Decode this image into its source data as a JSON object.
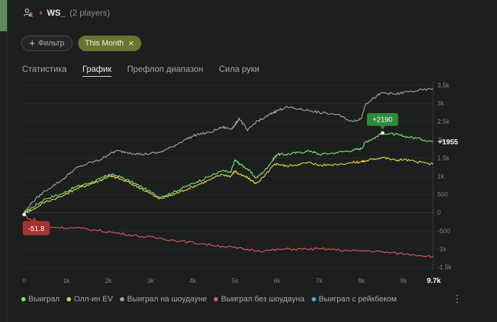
{
  "header": {
    "player": "WS_",
    "players_count": "(2 players)"
  },
  "filters": {
    "filter_label": "Фильтр",
    "period_label": "This Month"
  },
  "tabs": [
    {
      "label": "Статистика",
      "active": false
    },
    {
      "label": "График",
      "active": true
    },
    {
      "label": "Префлоп диапазон",
      "active": false
    },
    {
      "label": "Сила руки",
      "active": false
    }
  ],
  "chart_data": {
    "type": "line",
    "title": "",
    "xlabel": "",
    "ylabel": "",
    "xlim": [
      0,
      9700
    ],
    "ylim": [
      -1500,
      3500
    ],
    "x_ticks": [
      "0",
      "1k",
      "2k",
      "3k",
      "4k",
      "5k",
      "6k",
      "7k",
      "8k",
      "9k"
    ],
    "x_tick_values": [
      0,
      1000,
      2000,
      3000,
      4000,
      5000,
      6000,
      7000,
      8000,
      9000
    ],
    "x_end_label": "9.7k",
    "y_ticks": [
      "3.5k",
      "3k",
      "2.5k",
      "2k",
      "1.5k",
      "1k",
      "500",
      "0",
      "-500",
      "-1k",
      "-1.5k"
    ],
    "y_tick_values": [
      3500,
      3000,
      2500,
      2000,
      1500,
      1000,
      500,
      0,
      -500,
      -1000,
      -1500
    ],
    "grid": true,
    "legend_position": "bottom",
    "series": [
      {
        "name": "Выиграл",
        "color": "#7ee07a",
        "x": [
          0,
          200,
          500,
          900,
          1200,
          1500,
          1800,
          2000,
          2200,
          2500,
          2800,
          3200,
          3500,
          3800,
          4100,
          4400,
          4700,
          4900,
          5000,
          5100,
          5300,
          5500,
          5700,
          5900,
          6000,
          6200,
          6500,
          6800,
          7000,
          7400,
          7800,
          8000,
          8100,
          8300,
          8500,
          8800,
          9000,
          9300,
          9700
        ],
        "y": [
          0,
          150,
          380,
          520,
          700,
          800,
          920,
          1050,
          1020,
          870,
          700,
          430,
          540,
          700,
          850,
          1000,
          1150,
          1100,
          1450,
          1350,
          1200,
          950,
          1150,
          1450,
          1600,
          1600,
          1650,
          1700,
          1600,
          1650,
          1720,
          1760,
          1950,
          2050,
          2190,
          2150,
          2100,
          2050,
          1955
        ]
      },
      {
        "name": "Олл-ин EV",
        "color": "#e6d04a",
        "x": [
          0,
          200,
          500,
          900,
          1200,
          1500,
          1800,
          2000,
          2200,
          2500,
          2800,
          3200,
          3500,
          3800,
          4100,
          4400,
          4700,
          4900,
          5000,
          5100,
          5300,
          5500,
          5700,
          5900,
          6000,
          6200,
          6500,
          6800,
          7000,
          7400,
          7800,
          8000,
          8100,
          8300,
          8500,
          8800,
          9000,
          9300,
          9700
        ],
        "y": [
          0,
          80,
          300,
          450,
          640,
          760,
          880,
          1000,
          960,
          820,
          650,
          380,
          480,
          620,
          760,
          900,
          1050,
          1000,
          1150,
          1050,
          960,
          800,
          1000,
          1280,
          1350,
          1280,
          1330,
          1380,
          1300,
          1330,
          1380,
          1400,
          1420,
          1480,
          1520,
          1440,
          1460,
          1400,
          1330
        ]
      },
      {
        "name": "Выиграл на шоудауне",
        "color": "#9fa29e",
        "x": [
          0,
          200,
          500,
          900,
          1200,
          1500,
          1800,
          2000,
          2200,
          2500,
          2800,
          3200,
          3500,
          3800,
          4100,
          4400,
          4700,
          4900,
          5000,
          5100,
          5300,
          5500,
          5700,
          5900,
          6000,
          6200,
          6500,
          6800,
          7000,
          7400,
          7800,
          8000,
          8100,
          8300,
          8500,
          8800,
          9000,
          9300,
          9700
        ],
        "y": [
          0,
          300,
          600,
          900,
          1200,
          1350,
          1450,
          1600,
          1700,
          1650,
          1600,
          1650,
          1800,
          2000,
          2150,
          2200,
          2350,
          2300,
          2400,
          2600,
          2250,
          2500,
          2600,
          2750,
          2800,
          2900,
          2850,
          2800,
          2750,
          2700,
          2500,
          2600,
          3000,
          3150,
          3300,
          3250,
          3300,
          3350,
          3400
        ]
      },
      {
        "name": "Выиграл без шоудауна",
        "color": "#e05a5a",
        "x": [
          0,
          300,
          700,
          1200,
          1700,
          2200,
          2700,
          3200,
          3700,
          4200,
          4700,
          5200,
          5700,
          6200,
          6700,
          7200,
          7700,
          8200,
          8700,
          9200,
          9700
        ],
        "y": [
          -51.8,
          -350,
          -400,
          -420,
          -480,
          -560,
          -640,
          -700,
          -780,
          -850,
          -920,
          -1000,
          -1050,
          -1000,
          -1000,
          -1000,
          -1050,
          -1050,
          -1100,
          -1150,
          -1200
        ]
      },
      {
        "name": "Выиграл с рейкбеком",
        "color": "#3fb6d6"
      }
    ],
    "annotations": [
      {
        "text": "+2190",
        "x": 8500,
        "y": 2190,
        "color": "#2e8b3a"
      },
      {
        "text": "-51.8",
        "x": 0,
        "y": -51.8,
        "color": "#a83232"
      },
      {
        "text": "+1955",
        "x": 9700,
        "y": 1955
      }
    ]
  }
}
